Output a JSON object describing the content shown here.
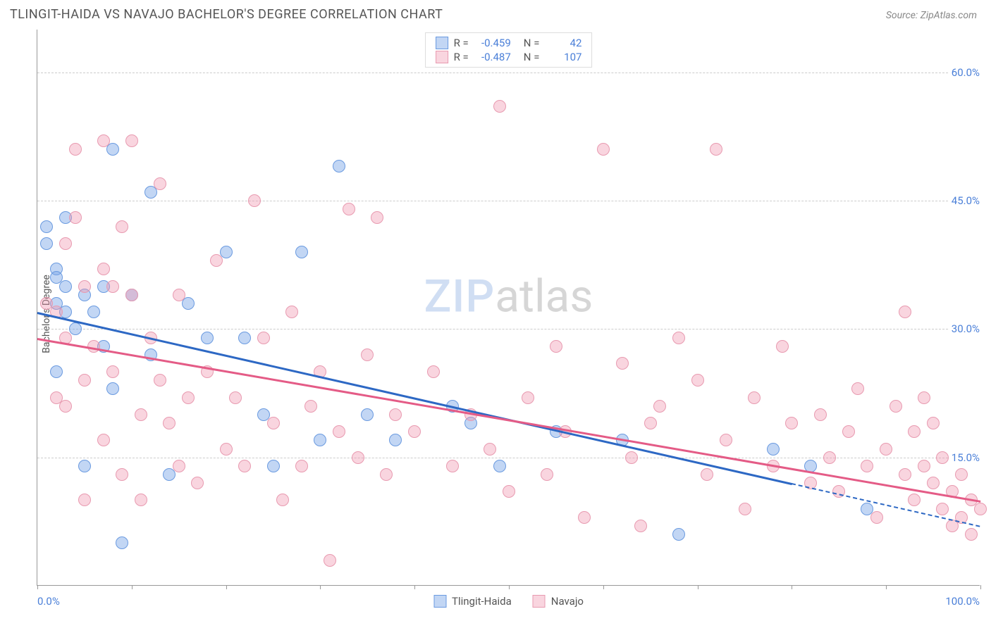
{
  "title": "TLINGIT-HAIDA VS NAVAJO BACHELOR'S DEGREE CORRELATION CHART",
  "source_prefix": "Source: ",
  "source_name": "ZipAtlas.com",
  "yaxis_label": "Bachelor's Degree",
  "watermark_a": "ZIP",
  "watermark_b": "atlas",
  "colors": {
    "series1_fill": "rgba(120,165,230,0.45)",
    "series1_stroke": "#6a9ae0",
    "series1_line": "#2d68c4",
    "series2_fill": "rgba(240,150,175,0.40)",
    "series2_stroke": "#e89ab0",
    "series2_line": "#e45b86",
    "grid": "#cccccc",
    "tick_text": "#4a7fd8",
    "text": "#555555"
  },
  "chart": {
    "type": "scatter",
    "xlim": [
      0,
      100
    ],
    "ylim": [
      0,
      65
    ],
    "yticks": [
      15,
      30,
      45,
      60
    ],
    "ytick_labels": [
      "15.0%",
      "30.0%",
      "45.0%",
      "60.0%"
    ],
    "xticks": [
      0,
      10,
      20,
      30,
      40,
      50,
      60,
      70,
      80,
      90,
      100
    ],
    "xtick_labels": {
      "0": "0.0%",
      "100": "100.0%"
    },
    "marker_radius": 9,
    "series": [
      {
        "name": "Tlingit-Haida",
        "R": "-0.459",
        "N": "42",
        "trend": {
          "x1": 0,
          "y1": 32,
          "x2": 80,
          "y2": 12,
          "x2_dash": 100,
          "y2_dash": 7
        },
        "points": [
          [
            1,
            42
          ],
          [
            1,
            40
          ],
          [
            2,
            37
          ],
          [
            2,
            36
          ],
          [
            2,
            33
          ],
          [
            2,
            25
          ],
          [
            3,
            43
          ],
          [
            3,
            35
          ],
          [
            3,
            32
          ],
          [
            4,
            30
          ],
          [
            5,
            34
          ],
          [
            5,
            14
          ],
          [
            6,
            32
          ],
          [
            7,
            28
          ],
          [
            7,
            35
          ],
          [
            8,
            51
          ],
          [
            8,
            23
          ],
          [
            9,
            5
          ],
          [
            10,
            34
          ],
          [
            12,
            46
          ],
          [
            12,
            27
          ],
          [
            14,
            13
          ],
          [
            16,
            33
          ],
          [
            18,
            29
          ],
          [
            20,
            39
          ],
          [
            22,
            29
          ],
          [
            24,
            20
          ],
          [
            25,
            14
          ],
          [
            28,
            39
          ],
          [
            30,
            17
          ],
          [
            32,
            49
          ],
          [
            35,
            20
          ],
          [
            38,
            17
          ],
          [
            44,
            21
          ],
          [
            46,
            19
          ],
          [
            49,
            14
          ],
          [
            55,
            18
          ],
          [
            62,
            17
          ],
          [
            68,
            6
          ],
          [
            78,
            16
          ],
          [
            82,
            14
          ],
          [
            88,
            9
          ]
        ]
      },
      {
        "name": "Navajo",
        "R": "-0.487",
        "N": "107",
        "trend": {
          "x1": 0,
          "y1": 29,
          "x2": 100,
          "y2": 10
        },
        "points": [
          [
            1,
            33
          ],
          [
            2,
            32
          ],
          [
            2,
            22
          ],
          [
            3,
            40
          ],
          [
            3,
            29
          ],
          [
            3,
            21
          ],
          [
            4,
            51
          ],
          [
            4,
            43
          ],
          [
            5,
            35
          ],
          [
            5,
            24
          ],
          [
            5,
            10
          ],
          [
            6,
            28
          ],
          [
            7,
            52
          ],
          [
            7,
            37
          ],
          [
            7,
            17
          ],
          [
            8,
            35
          ],
          [
            8,
            25
          ],
          [
            9,
            42
          ],
          [
            9,
            13
          ],
          [
            10,
            52
          ],
          [
            10,
            34
          ],
          [
            11,
            20
          ],
          [
            11,
            10
          ],
          [
            12,
            29
          ],
          [
            13,
            47
          ],
          [
            13,
            24
          ],
          [
            14,
            19
          ],
          [
            15,
            34
          ],
          [
            15,
            14
          ],
          [
            16,
            22
          ],
          [
            17,
            12
          ],
          [
            18,
            25
          ],
          [
            19,
            38
          ],
          [
            20,
            16
          ],
          [
            21,
            22
          ],
          [
            22,
            14
          ],
          [
            23,
            45
          ],
          [
            24,
            29
          ],
          [
            25,
            19
          ],
          [
            26,
            10
          ],
          [
            27,
            32
          ],
          [
            28,
            14
          ],
          [
            29,
            21
          ],
          [
            30,
            25
          ],
          [
            31,
            3
          ],
          [
            32,
            18
          ],
          [
            33,
            44
          ],
          [
            34,
            15
          ],
          [
            35,
            27
          ],
          [
            36,
            43
          ],
          [
            37,
            13
          ],
          [
            38,
            20
          ],
          [
            40,
            18
          ],
          [
            42,
            25
          ],
          [
            44,
            14
          ],
          [
            46,
            20
          ],
          [
            48,
            16
          ],
          [
            49,
            56
          ],
          [
            50,
            11
          ],
          [
            52,
            22
          ],
          [
            54,
            13
          ],
          [
            55,
            28
          ],
          [
            56,
            18
          ],
          [
            58,
            8
          ],
          [
            60,
            51
          ],
          [
            62,
            26
          ],
          [
            63,
            15
          ],
          [
            64,
            7
          ],
          [
            65,
            19
          ],
          [
            66,
            21
          ],
          [
            68,
            29
          ],
          [
            70,
            24
          ],
          [
            71,
            13
          ],
          [
            72,
            51
          ],
          [
            73,
            17
          ],
          [
            75,
            9
          ],
          [
            76,
            22
          ],
          [
            78,
            14
          ],
          [
            79,
            28
          ],
          [
            80,
            19
          ],
          [
            82,
            12
          ],
          [
            83,
            20
          ],
          [
            84,
            15
          ],
          [
            85,
            11
          ],
          [
            86,
            18
          ],
          [
            87,
            23
          ],
          [
            88,
            14
          ],
          [
            89,
            8
          ],
          [
            90,
            16
          ],
          [
            91,
            21
          ],
          [
            92,
            13
          ],
          [
            92,
            32
          ],
          [
            93,
            18
          ],
          [
            93,
            10
          ],
          [
            94,
            22
          ],
          [
            94,
            14
          ],
          [
            95,
            12
          ],
          [
            95,
            19
          ],
          [
            96,
            9
          ],
          [
            96,
            15
          ],
          [
            97,
            11
          ],
          [
            97,
            7
          ],
          [
            98,
            13
          ],
          [
            98,
            8
          ],
          [
            99,
            10
          ],
          [
            99,
            6
          ],
          [
            100,
            9
          ]
        ]
      }
    ]
  },
  "legend_top": {
    "R_label": "R =",
    "N_label": "N ="
  },
  "legend_bottom_labels": [
    "Tlingit-Haida",
    "Navajo"
  ]
}
